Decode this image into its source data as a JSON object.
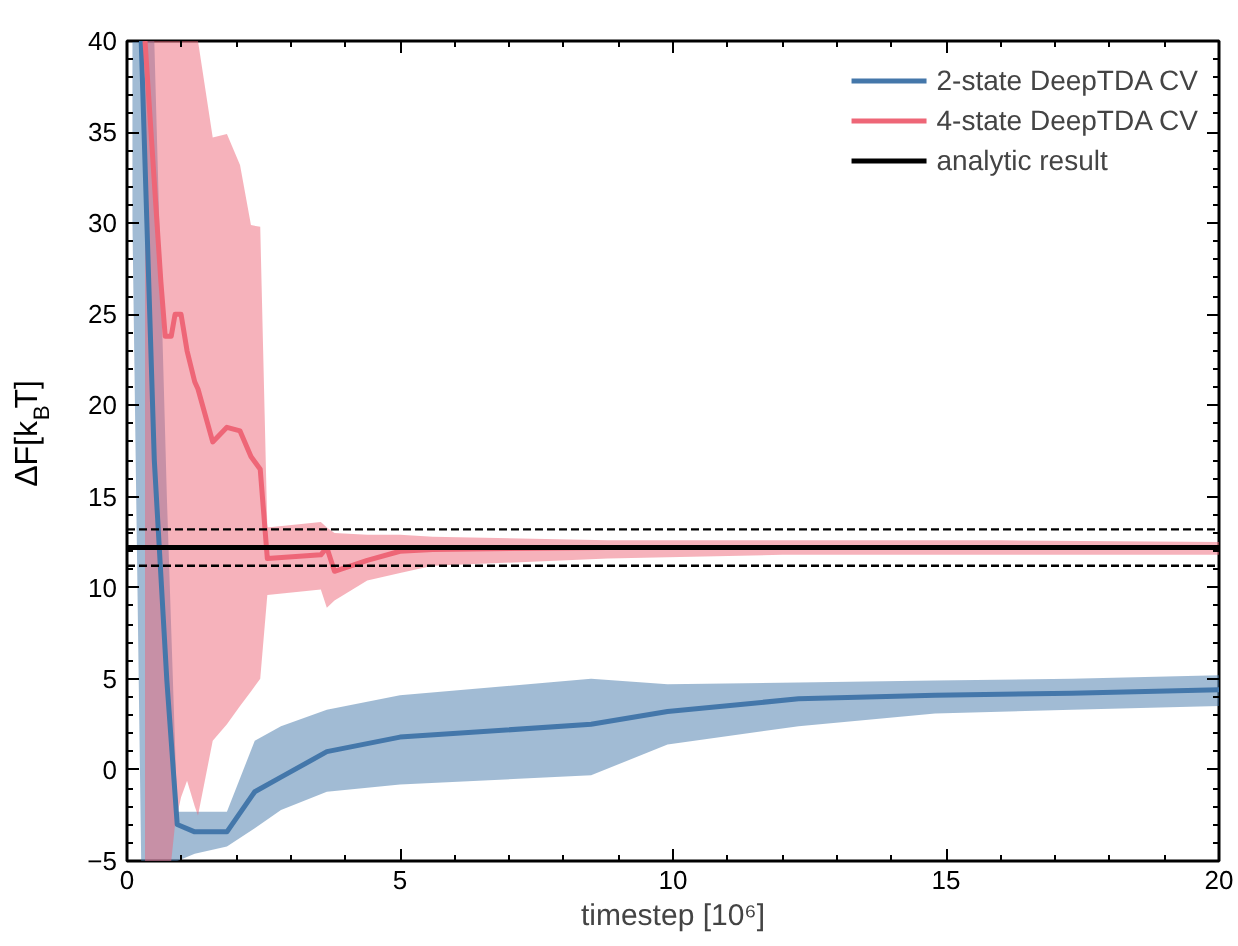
{
  "chart_data": {
    "type": "line",
    "xlabel": "timestep [10⁶]",
    "ylabel": "ΔF[k$_{B}$T]",
    "xlim": [
      0,
      20
    ],
    "ylim": [
      -5,
      40
    ],
    "xticks": [
      0,
      5,
      10,
      15,
      20
    ],
    "yticks": [
      -5,
      0,
      5,
      10,
      15,
      20,
      25,
      30,
      35,
      40
    ],
    "grid": false,
    "legend": "top right",
    "series": [
      {
        "name": "2-state DeepTDA CV",
        "color": "#4477aa",
        "x": [
          0.1,
          0.26,
          0.5,
          0.73,
          0.92,
          1.24,
          1.83,
          2.34,
          2.82,
          3.66,
          5.0,
          8.5,
          9.9,
          12.3,
          14.8,
          17.3,
          20
        ],
        "values": [
          null,
          40,
          17.0,
          4.9,
          -3.0,
          -3.4,
          -3.4,
          -1.2,
          -0.4,
          1.0,
          1.8,
          2.5,
          3.2,
          3.9,
          4.1,
          4.2,
          4.4
        ],
        "upper": [
          40,
          40,
          40,
          15,
          -2.3,
          -2.3,
          -2.3,
          1.6,
          2.4,
          3.3,
          4.1,
          5.0,
          4.7,
          4.8,
          4.9,
          5.0,
          5.2
        ],
        "lower": [
          30,
          -5,
          -5,
          -5,
          -5,
          -4.6,
          -4.2,
          -3.2,
          -2.2,
          -1.2,
          -0.8,
          -0.3,
          1.4,
          2.4,
          3.1,
          3.3,
          3.5
        ]
      },
      {
        "name": "4-state DeepTDA CV",
        "color": "#ee6677",
        "x": [
          0.33,
          0.62,
          0.7,
          0.81,
          0.88,
          0.99,
          1.1,
          1.24,
          1.3,
          1.57,
          1.83,
          2.07,
          2.27,
          2.44,
          2.57,
          3.55,
          3.66,
          3.8,
          4.4,
          5,
          5.6,
          8.8,
          12,
          16,
          20
        ],
        "values": [
          40,
          26.8,
          23.8,
          23.8,
          25.0,
          25.0,
          23.0,
          21.3,
          20.9,
          18.0,
          18.8,
          18.6,
          17.2,
          16.5,
          11.6,
          11.8,
          12.2,
          10.9,
          11.5,
          12.0,
          12.1,
          12.2,
          12.2,
          12.2,
          12.2
        ],
        "upper": [
          40,
          40,
          40,
          40,
          40,
          40,
          40,
          40,
          40,
          34.7,
          34.9,
          33.2,
          29.9,
          29.8,
          13.3,
          13.6,
          13.3,
          13.0,
          12.9,
          12.9,
          12.8,
          12.6,
          12.6,
          12.6,
          12.5
        ],
        "lower": [
          -5,
          -5,
          -5,
          -5,
          -3,
          -1.5,
          -0.6,
          -2.0,
          -2.5,
          1.6,
          2.5,
          3.5,
          4.3,
          5.0,
          9.6,
          9.9,
          8.9,
          9.3,
          10.4,
          10.8,
          11.2,
          11.6,
          11.8,
          11.8,
          11.8
        ]
      },
      {
        "name": "analytic result",
        "color": "#000000",
        "x": [
          0,
          20
        ],
        "values": [
          12.2,
          12.2
        ]
      }
    ],
    "ref_lines": [
      {
        "axis": "y",
        "value": 13.2,
        "color": "#000000",
        "line_style": "dashed"
      },
      {
        "axis": "y",
        "value": 11.2,
        "color": "#000000",
        "line_style": "dashed"
      }
    ]
  }
}
